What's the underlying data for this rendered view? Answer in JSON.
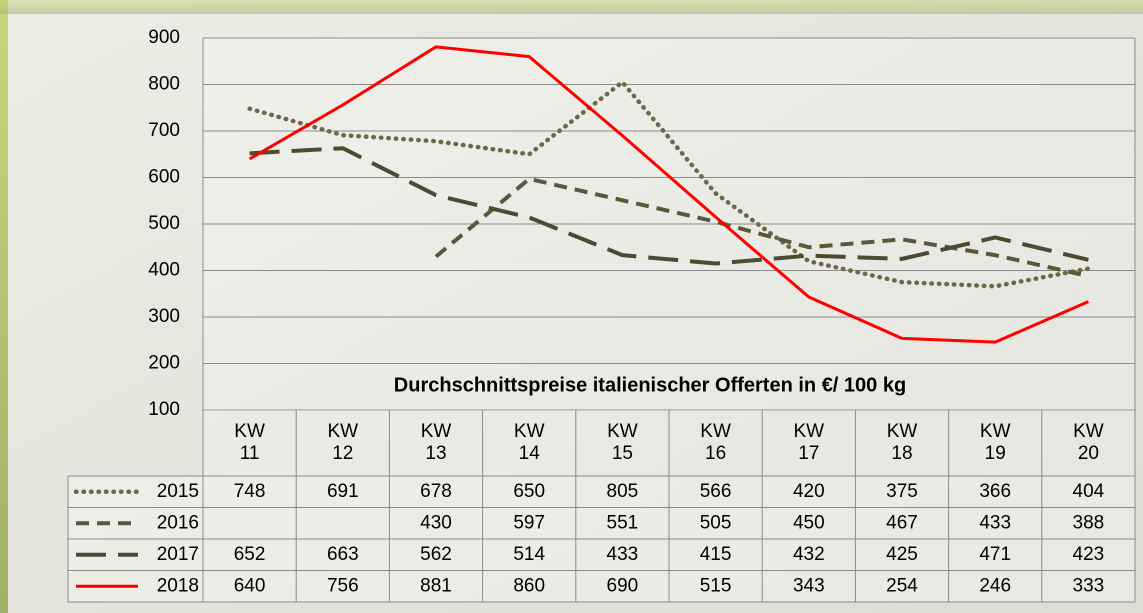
{
  "chart_data": {
    "type": "line",
    "title": "Durchschnittspreise italienischer Offerten in €/ 100 kg",
    "categories": [
      "KW 11",
      "KW 12",
      "KW 13",
      "KW 14",
      "KW 15",
      "KW 16",
      "KW 17",
      "KW 18",
      "KW 19",
      "KW 20"
    ],
    "series": [
      {
        "name": "2015",
        "color": "#6e6848",
        "dash": "dotted",
        "values": [
          748,
          691,
          678,
          650,
          805,
          566,
          420,
          375,
          366,
          404
        ]
      },
      {
        "name": "2016",
        "color": "#5c5738",
        "dash": "dashed",
        "values": [
          null,
          null,
          430,
          597,
          551,
          505,
          450,
          467,
          433,
          388
        ]
      },
      {
        "name": "2017",
        "color": "#4d4a30",
        "dash": "long-dashed",
        "values": [
          652,
          663,
          562,
          514,
          433,
          415,
          432,
          425,
          471,
          423
        ]
      },
      {
        "name": "2018",
        "color": "#ff0000",
        "dash": "solid",
        "values": [
          640,
          756,
          881,
          860,
          690,
          515,
          343,
          254,
          246,
          333
        ]
      }
    ],
    "ylim": [
      100,
      900
    ],
    "yticks": [
      100,
      200,
      300,
      400,
      500,
      600,
      700,
      800,
      900
    ],
    "grid": true,
    "data_table": true
  }
}
